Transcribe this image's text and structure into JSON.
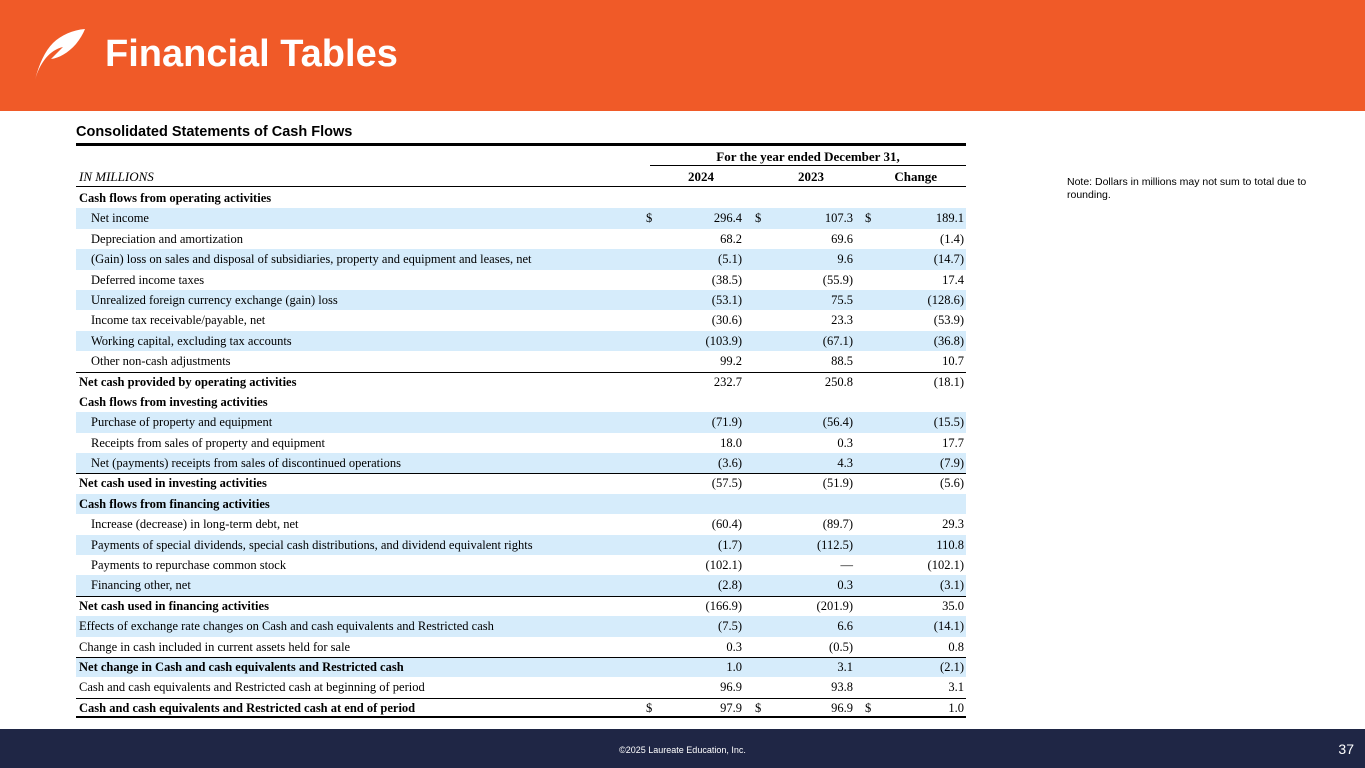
{
  "header": {
    "title": "Financial Tables",
    "brand_color": "#f05a28",
    "logo_icon": "leaf-icon"
  },
  "section_title": "Consolidated  Statements  of Cash Flows",
  "note": "Note:  Dollars  in millions  may not sum to total due to rounding.",
  "table": {
    "period_header": "For the year ended December 31,",
    "units_label": "IN MILLIONS",
    "columns": [
      "2024",
      "2023",
      "Change"
    ],
    "currency_symbol": "$",
    "rows": [
      {
        "label": "Cash flows from operating  activities",
        "values": [
          "",
          "",
          ""
        ]
      },
      {
        "label": "Net income",
        "values": [
          "296.4",
          "107.3",
          "189.1"
        ]
      },
      {
        "label": "Depreciation and amortization",
        "values": [
          "68.2",
          "69.6",
          "(1.4)"
        ]
      },
      {
        "label": "(Gain) loss on sales and disposal of subsidiaries, property and equipment  and leases, net",
        "values": [
          "(5.1)",
          "9.6",
          "(14.7)"
        ]
      },
      {
        "label": "Deferred income  taxes",
        "values": [
          "(38.5)",
          "(55.9)",
          "17.4"
        ]
      },
      {
        "label": "Unrealized  foreign  currency  exchange  (gain) loss",
        "values": [
          "(53.1)",
          "75.5",
          "(128.6)"
        ]
      },
      {
        "label": "Income  tax receivable/payable, net",
        "values": [
          "(30.6)",
          "23.3",
          "(53.9)"
        ]
      },
      {
        "label": "Working  capital,  excluding  tax accounts",
        "values": [
          "(103.9)",
          "(67.1)",
          "(36.8)"
        ]
      },
      {
        "label": "Other  non-cash adjustments",
        "values": [
          "99.2",
          "88.5",
          "10.7"
        ]
      },
      {
        "label": "Net cash provided  by operating  activities",
        "values": [
          "232.7",
          "250.8",
          "(18.1)"
        ]
      },
      {
        "label": "Cash flows from investing activities",
        "values": [
          "",
          "",
          ""
        ]
      },
      {
        "label": "Purchase  of property and equipment",
        "values": [
          "(71.9)",
          "(56.4)",
          "(15.5)"
        ]
      },
      {
        "label": "Receipts from sales of property and equipment",
        "values": [
          "18.0",
          "0.3",
          "17.7"
        ]
      },
      {
        "label": "Net (payments)  receipts from sales of discontinued  operations",
        "values": [
          "(3.6)",
          "4.3",
          "(7.9)"
        ]
      },
      {
        "label": "Net cash used in investing  activities",
        "values": [
          "(57.5)",
          "(51.9)",
          "(5.6)"
        ]
      },
      {
        "label": "Cash flows from financing  activities",
        "values": [
          "",
          "",
          ""
        ]
      },
      {
        "label": "Increase  (decrease) in long-term  debt, net",
        "values": [
          "(60.4)",
          "(89.7)",
          "29.3"
        ]
      },
      {
        "label": "Payments  of special dividends, special cash distributions, and dividend equivalent rights",
        "values": [
          "(1.7)",
          "(112.5)",
          "110.8"
        ]
      },
      {
        "label": "Payments  to repurchase  common  stock",
        "values": [
          "(102.1)",
          "—",
          "(102.1)"
        ]
      },
      {
        "label": "Financing  other, net",
        "values": [
          "(2.8)",
          "0.3",
          "(3.1)"
        ]
      },
      {
        "label": "Net cash used in financing  activities",
        "values": [
          "(166.9)",
          "(201.9)",
          "35.0"
        ]
      },
      {
        "label": "Effects of exchange  rate changes  on Cash and cash equivalents and Restricted cash",
        "values": [
          "(7.5)",
          "6.6",
          "(14.1)"
        ]
      },
      {
        "label": "Change  in cash included in current assets held for sale",
        "values": [
          "0.3",
          "(0.5)",
          "0.8"
        ]
      },
      {
        "label": "Net change  in Cash and cash equivalents  and Restricted  cash",
        "values": [
          "1.0",
          "3.1",
          "(2.1)"
        ]
      },
      {
        "label": "Cash and cash equivalents and Restricted cash at beginning  of period",
        "values": [
          "96.9",
          "93.8",
          "3.1"
        ]
      },
      {
        "label": "Cash and cash equivalents  and Restricted  cash at end of period",
        "values": [
          "97.9",
          "96.9",
          "1.0"
        ]
      }
    ]
  },
  "footer": {
    "copyright": "©2025 Laureate Education, Inc.",
    "page_number": "37",
    "footer_color": "#1f2645"
  }
}
